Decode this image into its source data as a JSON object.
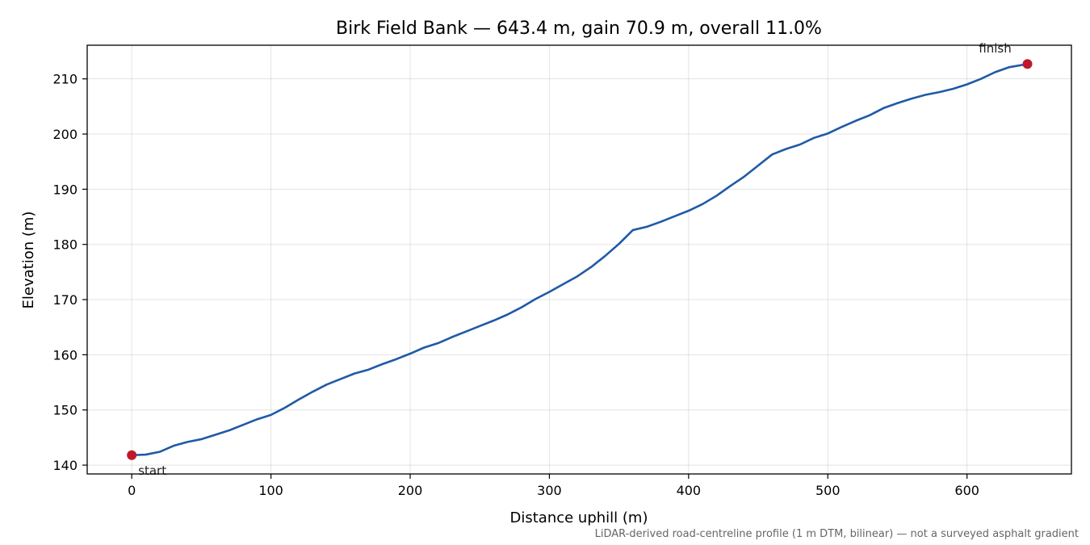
{
  "chart_data": {
    "type": "line",
    "title": "Birk Field Bank — 643.4 m, gain 70.9 m, overall 11.0%",
    "xlabel": "Distance uphill (m)",
    "ylabel": "Elevation (m)",
    "xlim": [
      -32,
      675
    ],
    "ylim": [
      138.4,
      216.1
    ],
    "xticks": [
      0,
      100,
      200,
      300,
      400,
      500,
      600
    ],
    "yticks": [
      140,
      150,
      160,
      170,
      180,
      190,
      200,
      210
    ],
    "grid": true,
    "line_color": "#1f5aa6",
    "marker_color": "#c0182a",
    "series": [
      {
        "x": [
          0,
          10,
          20,
          30,
          40,
          50,
          60,
          70,
          80,
          90,
          100,
          110,
          120,
          130,
          140,
          150,
          160,
          170,
          180,
          190,
          200,
          210,
          220,
          230,
          240,
          250,
          260,
          270,
          280,
          290,
          300,
          310,
          320,
          330,
          340,
          350,
          360,
          370,
          380,
          390,
          400,
          410,
          420,
          430,
          440,
          450,
          460,
          470,
          480,
          490,
          500,
          510,
          520,
          530,
          540,
          550,
          560,
          570,
          580,
          590,
          600,
          610,
          620,
          630,
          643.4
        ],
        "y": [
          141.8,
          141.9,
          142.4,
          143.5,
          144.2,
          144.7,
          145.5,
          146.3,
          147.3,
          148.3,
          149.1,
          150.4,
          151.9,
          153.3,
          154.6,
          155.6,
          156.6,
          157.3,
          158.3,
          159.2,
          160.2,
          161.3,
          162.1,
          163.2,
          164.2,
          165.2,
          166.2,
          167.3,
          168.6,
          170.1,
          171.4,
          172.8,
          174.2,
          175.9,
          177.9,
          180.1,
          182.6,
          183.2,
          184.1,
          185.1,
          186.1,
          187.3,
          188.8,
          190.6,
          192.3,
          194.3,
          196.3,
          197.3,
          198.1,
          199.3,
          200.1,
          201.3,
          202.4,
          203.4,
          204.7,
          205.6,
          206.4,
          207.1,
          207.6,
          208.2,
          209.0,
          210.0,
          211.2,
          212.1,
          212.7
        ]
      }
    ],
    "annotations": {
      "start": {
        "text": "start",
        "x": 0,
        "y": 141.8
      },
      "finish": {
        "text": "finish",
        "x": 643.4,
        "y": 212.7
      }
    },
    "footnote": "LiDAR-derived road-centreline profile (1 m DTM, bilinear) — not a surveyed asphalt gradient"
  }
}
